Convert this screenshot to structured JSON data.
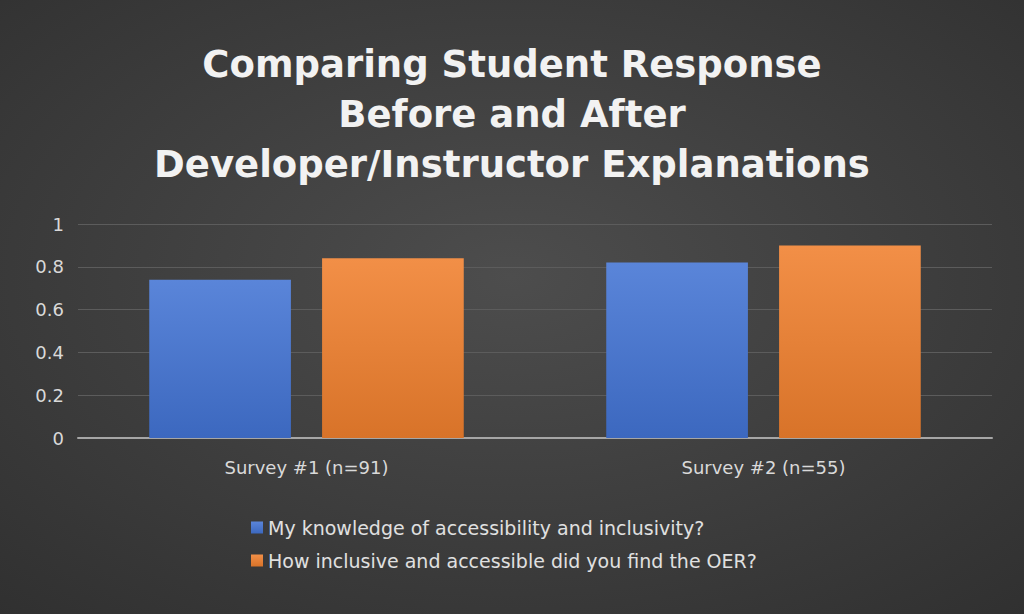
{
  "chart_data": {
    "type": "bar",
    "title": "Comparing Student Response\nBefore and After\nDeveloper/Instructor Explanations",
    "categories": [
      "Survey #1 (n=91)",
      "Survey #2 (n=55)"
    ],
    "series": [
      {
        "name": "My knowledge of accessibility and inclusivity?",
        "color": "#4374d4",
        "values": [
          0.74,
          0.82
        ]
      },
      {
        "name": "How inclusive and accessible did you find the OER?",
        "color": "#f0802e",
        "values": [
          0.84,
          0.9
        ]
      }
    ],
    "ylim": [
      0,
      1
    ],
    "yticks": [
      0,
      0.2,
      0.4,
      0.6,
      0.8,
      1
    ],
    "grid": true,
    "legend": "bottom"
  }
}
